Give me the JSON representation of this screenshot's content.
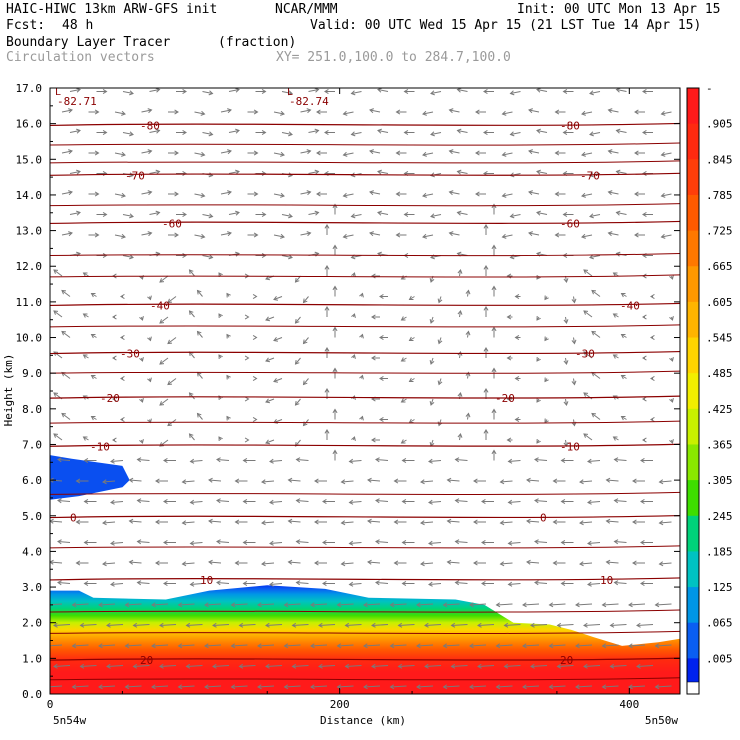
{
  "header": {
    "model": "HAIC-HIWC 13km ARW-GFS init",
    "org": "NCAR/MMM",
    "init": "Init: 00 UTC Mon 13 Apr 15",
    "fcst_label": "Fcst:",
    "fcst_value": "48 h",
    "valid": "Valid: 00 UTC Wed 15 Apr 15 (21 LST Tue 14 Apr 15)",
    "field": "Boundary Layer Tracer",
    "units": "(fraction)",
    "vectors": "Circulation vectors",
    "xy": "XY= 251.0,100.0 to 284.7,100.0"
  },
  "chart_data": {
    "type": "cross-section",
    "title": "Boundary Layer Tracer",
    "xlabel": "Distance (km)",
    "ylabel": "Height (km)",
    "xlim": [
      0,
      435
    ],
    "ylim": [
      0,
      17
    ],
    "x_ticks": [
      "0",
      "200",
      "400"
    ],
    "x_endpoint_labels": [
      "5n54w",
      "5n50w"
    ],
    "y_ticks": [
      "0.0",
      "1.0",
      "2.0",
      "3.0",
      "4.0",
      "5.0",
      "6.0",
      "7.0",
      "8.0",
      "9.0",
      "10.0",
      "11.0",
      "12.0",
      "13.0",
      "14.0",
      "15.0",
      "16.0",
      "17.0"
    ],
    "colorbar": {
      "labels": [
        "-",
        ".905",
        ".845",
        ".785",
        ".725",
        ".665",
        ".605",
        ".545",
        ".485",
        ".425",
        ".365",
        ".305",
        ".245",
        ".185",
        ".125",
        ".065",
        ".005"
      ],
      "colors": [
        "#ff1a1a",
        "#ff2a10",
        "#ff3e0a",
        "#ff5a00",
        "#ff7800",
        "#ff9800",
        "#ffb400",
        "#ffd400",
        "#f2ee00",
        "#c8f000",
        "#8ae800",
        "#3ede00",
        "#00d27a",
        "#00c2c2",
        "#0096e6",
        "#0a5ef2",
        "#0022ee"
      ]
    },
    "tracer_top_km": [
      [
        0,
        2.9
      ],
      [
        20,
        2.9
      ],
      [
        30,
        2.7
      ],
      [
        80,
        2.65
      ],
      [
        110,
        2.9
      ],
      [
        150,
        3.05
      ],
      [
        190,
        2.95
      ],
      [
        220,
        2.7
      ],
      [
        280,
        2.65
      ],
      [
        300,
        2.5
      ],
      [
        320,
        2.0
      ],
      [
        345,
        1.95
      ],
      [
        360,
        1.8
      ],
      [
        375,
        1.6
      ],
      [
        395,
        1.35
      ],
      [
        420,
        1.45
      ],
      [
        435,
        1.55
      ]
    ],
    "upper_patch_km": [
      [
        0,
        6.7
      ],
      [
        15,
        6.6
      ],
      [
        50,
        6.4
      ],
      [
        55,
        6.0
      ],
      [
        50,
        5.8
      ],
      [
        20,
        5.55
      ],
      [
        0,
        5.45
      ]
    ],
    "temperature_contours": [
      {
        "label": "-82.71",
        "y": 16.8
      },
      {
        "label": "-82.74",
        "y": 16.8
      },
      {
        "label": "-80",
        "y": 15.95
      },
      {
        "label": "-70",
        "y": 14.55
      },
      {
        "label": "-60",
        "y": 13.2
      },
      {
        "label": "-40",
        "y": 10.9
      },
      {
        "label": "-30",
        "y": 9.55
      },
      {
        "label": "-20",
        "y": 8.3
      },
      {
        "label": "-10",
        "y": 6.95
      },
      {
        "label": "0",
        "y": 4.95
      },
      {
        "label": "10",
        "y": 3.2
      },
      {
        "label": "20",
        "y": 0.95
      }
    ],
    "vectors": "circulation",
    "grid": false
  }
}
